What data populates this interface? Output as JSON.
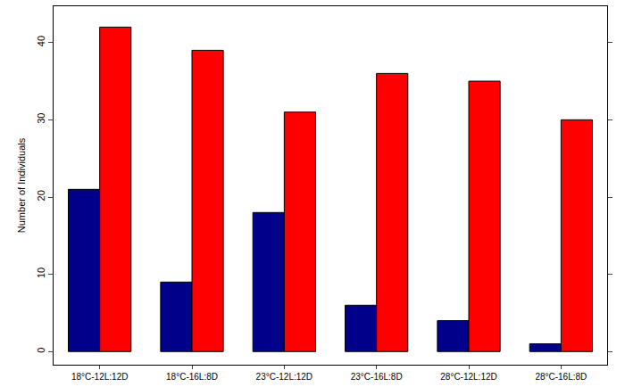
{
  "chart_data": {
    "type": "bar",
    "y_label": "Number of Individuals",
    "categories": [
      "18°C-12L:12D",
      "18°C-16L:8D",
      "23°C-12L:12D",
      "23°C-16L:8D",
      "28°C-12L:12D",
      "28°C-16L:8D"
    ],
    "series": [
      {
        "color": "#00008B",
        "values": [
          21,
          9,
          18,
          6,
          4,
          1
        ]
      },
      {
        "color": "#FF0000",
        "values": [
          42,
          39,
          31,
          36,
          35,
          30
        ]
      }
    ],
    "ylim": [
      -1.7,
      44.7
    ],
    "yticks": [
      0,
      10,
      20,
      30,
      40
    ],
    "grid": false
  }
}
